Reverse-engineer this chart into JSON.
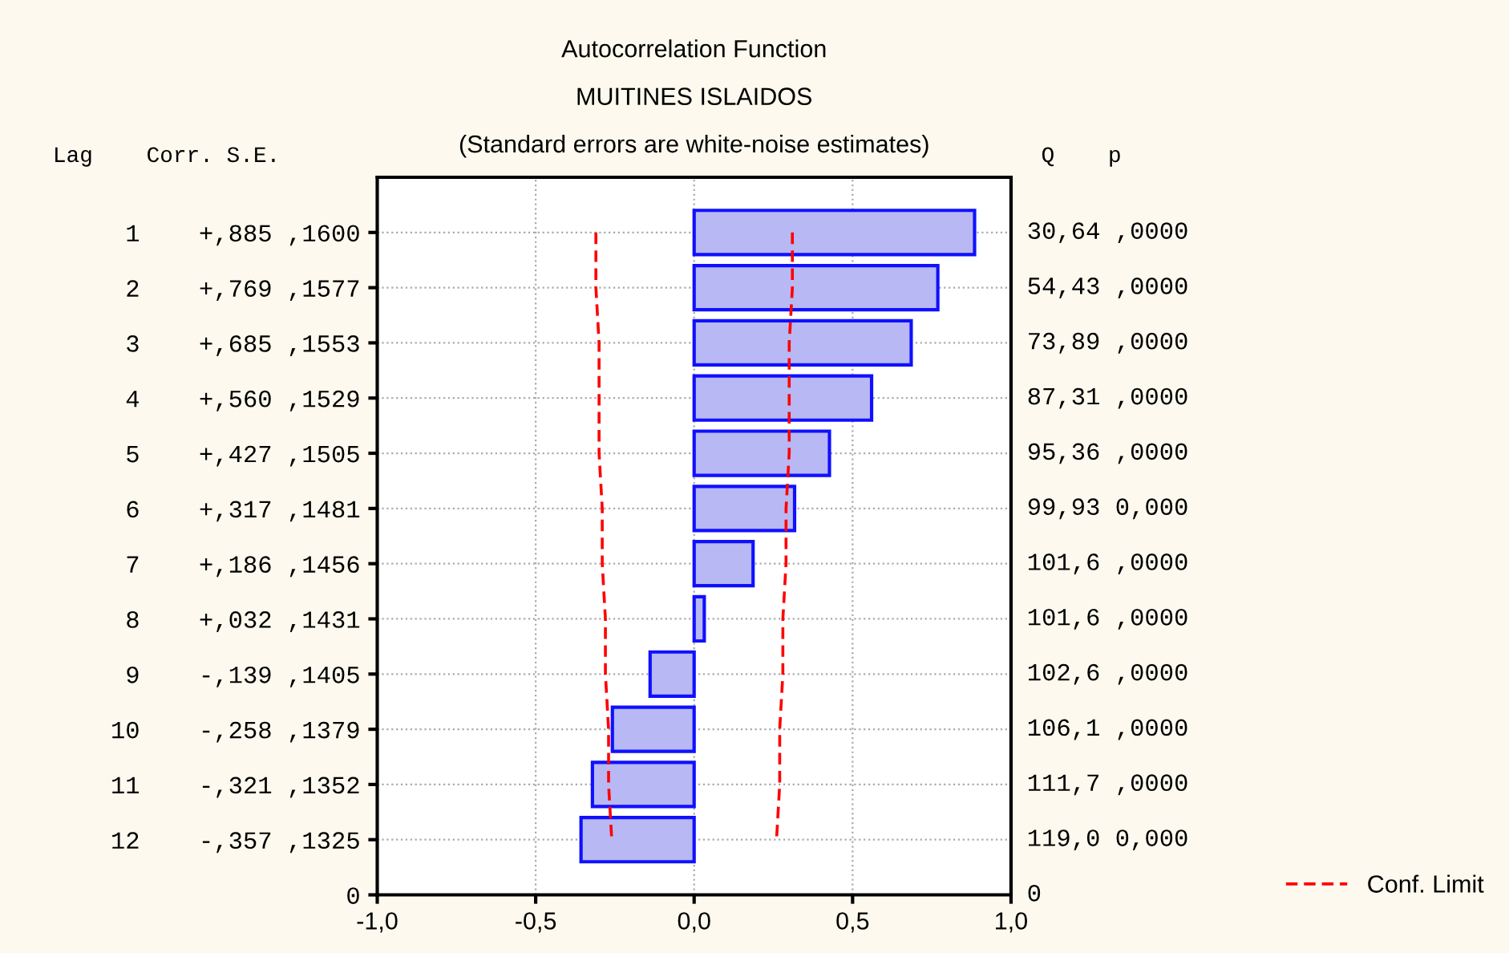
{
  "chart_data": {
    "type": "bar",
    "orientation": "horizontal",
    "title": "Autocorrelation Function",
    "subtitle": "MUITINES ISLAIDOS",
    "categories": [
      "1    +,885 ,1600",
      "2    +,769 ,1577",
      "3    +,685 ,1553",
      "4    +,560 ,1529",
      "5    +,427 ,1505",
      "6    +,317 ,1481",
      "7    +,186 ,1456",
      "8    +,032 ,1431",
      "9    -,139 ,1405",
      "10    -,258 ,1379",
      "11    -,321 ,1352",
      "12    -,357 ,1325",
      "0"
    ],
    "series": [
      {
        "color": "#b8b8f4",
        "values": [
          0.885,
          0.769,
          0.685,
          0.56,
          0.427,
          0.317,
          0.186,
          0.032,
          -0.139,
          -0.258,
          -0.321,
          -0.357,
          null
        ]
      },
      {
        "type": "line",
        "name": "Conf. Limit",
        "color": "#ff0000",
        "line_style": "dashed",
        "values": [
          0.31,
          0.31,
          0.3,
          0.3,
          0.3,
          0.29,
          0.29,
          0.28,
          0.28,
          0.27,
          0.27,
          0.26,
          null
        ]
      },
      {
        "type": "line",
        "color": "#ff0000",
        "line_style": "dashed",
        "values": [
          -0.31,
          -0.31,
          -0.3,
          -0.3,
          -0.3,
          -0.29,
          -0.29,
          -0.28,
          -0.28,
          -0.27,
          -0.27,
          -0.26,
          null
        ]
      }
    ],
    "xlim": [
      -1,
      1
    ],
    "xticks": [
      {
        "value": -1,
        "label": "-1,0"
      },
      {
        "value": -0.5,
        "label": "-0,5"
      },
      {
        "value": 0,
        "label": "0,0"
      },
      {
        "value": 0.5,
        "label": "0,5"
      },
      {
        "value": 1,
        "label": "1,0"
      }
    ],
    "grid": true,
    "legend": "bottom right",
    "annotations": [
      "(Standard errors are white-noise estimates)",
      "Lag    Corr. S.E.",
      "Q    p",
      "30,64 ,0000",
      "54,43 ,0000",
      "73,89 ,0000",
      "87,31 ,0000",
      "95,36 ,0000",
      "99,93 0,000",
      "101,6 ,0000",
      "101,6 ,0000",
      "102,6 ,0000",
      "106,1 ,0000",
      "111,7 ,0000",
      "119,0 0,000",
      "0"
    ]
  }
}
